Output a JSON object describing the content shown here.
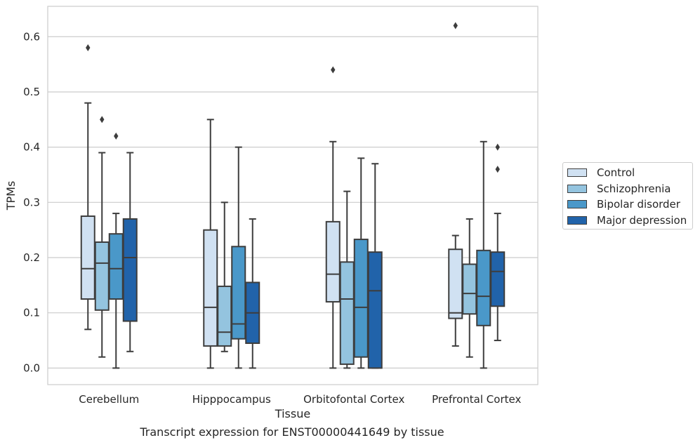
{
  "caption": "Transcript expression for ENST00000441649 by tissue",
  "chart_data": {
    "type": "box",
    "xlabel": "Tissue",
    "ylabel": "TPMs",
    "ylim": [
      -0.03,
      0.655
    ],
    "yticks": [
      0.0,
      0.1,
      0.2,
      0.3,
      0.4,
      0.5,
      0.6
    ],
    "ytick_labels": [
      "0.0",
      "0.1",
      "0.2",
      "0.3",
      "0.4",
      "0.5",
      "0.6"
    ],
    "grid": "horizontal",
    "legend_position": "right",
    "categories": [
      "Cerebellum",
      "Hipppocampus",
      "Orbitofontal Cortex",
      "Prefrontal Cortex"
    ],
    "series": [
      {
        "name": "Control",
        "color": "#d0e1f2",
        "boxes": [
          {
            "min": 0.07,
            "q1": 0.125,
            "median": 0.18,
            "q3": 0.275,
            "max": 0.48,
            "outliers": [
              0.58
            ]
          },
          {
            "min": 0.0,
            "q1": 0.04,
            "median": 0.11,
            "q3": 0.25,
            "max": 0.45,
            "outliers": []
          },
          {
            "min": 0.0,
            "q1": 0.12,
            "median": 0.17,
            "q3": 0.265,
            "max": 0.41,
            "outliers": [
              0.54
            ]
          },
          {
            "min": 0.04,
            "q1": 0.09,
            "median": 0.1,
            "q3": 0.215,
            "max": 0.24,
            "outliers": [
              0.62
            ]
          }
        ]
      },
      {
        "name": "Schizophrenia",
        "color": "#94c4df",
        "boxes": [
          {
            "min": 0.02,
            "q1": 0.105,
            "median": 0.19,
            "q3": 0.228,
            "max": 0.39,
            "outliers": [
              0.45
            ]
          },
          {
            "min": 0.03,
            "q1": 0.04,
            "median": 0.065,
            "q3": 0.148,
            "max": 0.3,
            "outliers": []
          },
          {
            "min": 0.0,
            "q1": 0.007,
            "median": 0.125,
            "q3": 0.192,
            "max": 0.32,
            "outliers": []
          },
          {
            "min": 0.02,
            "q1": 0.098,
            "median": 0.135,
            "q3": 0.188,
            "max": 0.27,
            "outliers": []
          }
        ]
      },
      {
        "name": "Bipolar disorder",
        "color": "#4a98c9",
        "boxes": [
          {
            "min": 0.0,
            "q1": 0.125,
            "median": 0.18,
            "q3": 0.243,
            "max": 0.28,
            "outliers": [
              0.42
            ]
          },
          {
            "min": 0.0,
            "q1": 0.053,
            "median": 0.08,
            "q3": 0.22,
            "max": 0.4,
            "outliers": []
          },
          {
            "min": 0.0,
            "q1": 0.02,
            "median": 0.11,
            "q3": 0.233,
            "max": 0.38,
            "outliers": []
          },
          {
            "min": 0.0,
            "q1": 0.077,
            "median": 0.13,
            "q3": 0.213,
            "max": 0.41,
            "outliers": []
          }
        ]
      },
      {
        "name": "Major depression",
        "color": "#2163aa",
        "boxes": [
          {
            "min": 0.03,
            "q1": 0.085,
            "median": 0.2,
            "q3": 0.27,
            "max": 0.39,
            "outliers": []
          },
          {
            "min": 0.0,
            "q1": 0.045,
            "median": 0.1,
            "q3": 0.155,
            "max": 0.27,
            "outliers": []
          },
          {
            "min": 0.0,
            "q1": 0.0,
            "median": 0.14,
            "q3": 0.21,
            "max": 0.37,
            "outliers": []
          },
          {
            "min": 0.05,
            "q1": 0.112,
            "median": 0.175,
            "q3": 0.21,
            "max": 0.28,
            "outliers": [
              0.4,
              0.36
            ]
          }
        ]
      }
    ]
  }
}
